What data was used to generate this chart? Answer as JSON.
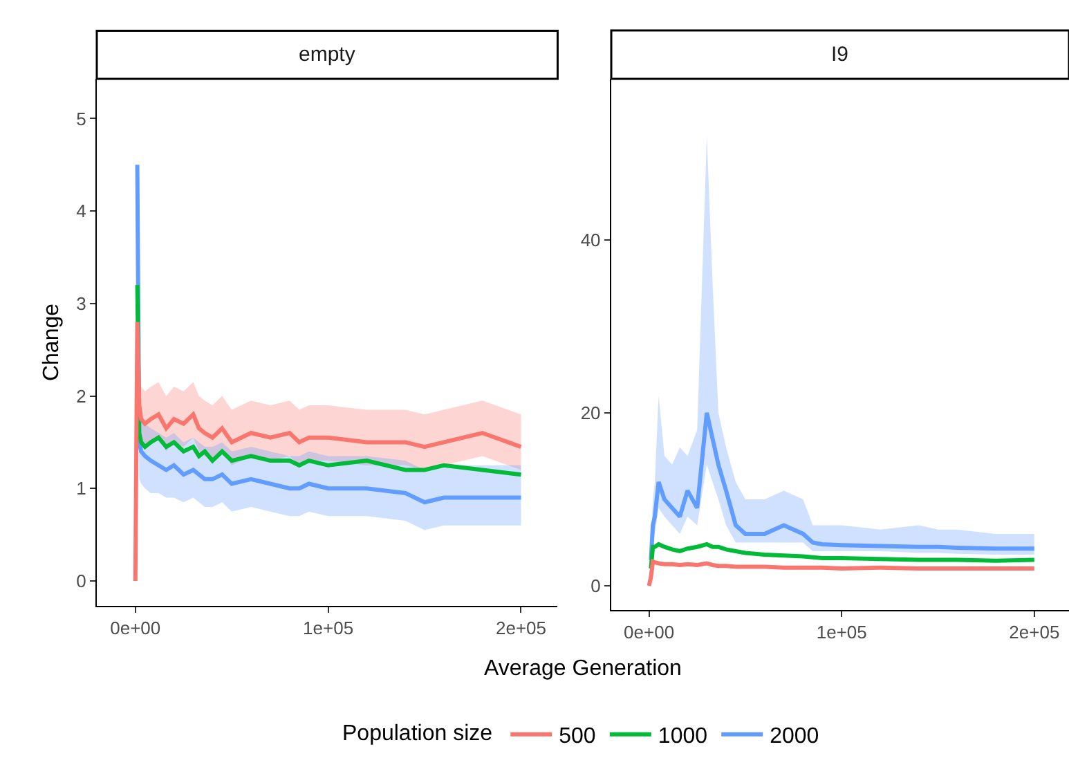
{
  "chart_data": [
    {
      "type": "line",
      "title": "empty",
      "xlabel": "Average Generation",
      "ylabel": "Change",
      "legend_title": "Population size",
      "legend": "bottom",
      "grid": false,
      "x": [
        0,
        1000,
        2000,
        3000,
        5000,
        8000,
        12000,
        16000,
        20000,
        25000,
        30000,
        33000,
        36000,
        40000,
        45000,
        50000,
        60000,
        70000,
        80000,
        85000,
        90000,
        100000,
        120000,
        140000,
        150000,
        160000,
        180000,
        200000
      ],
      "xlim": [
        -20000,
        219000
      ],
      "xticks": [
        {
          "value": 0,
          "label": "0e+00"
        },
        {
          "value": 100000,
          "label": "1e+05"
        },
        {
          "value": 200000,
          "label": "2e+05"
        }
      ],
      "ylim": [
        -0.27,
        5.43
      ],
      "yticks": [
        0,
        1,
        2,
        3,
        4,
        5
      ],
      "series": [
        {
          "name": "500",
          "color": "#f8766d",
          "values": [
            0,
            2.8,
            1.9,
            1.75,
            1.7,
            1.75,
            1.8,
            1.65,
            1.75,
            1.7,
            1.8,
            1.65,
            1.6,
            1.55,
            1.65,
            1.5,
            1.6,
            1.55,
            1.6,
            1.5,
            1.55,
            1.55,
            1.5,
            1.5,
            1.45,
            1.5,
            1.6,
            1.45
          ],
          "lower": [
            0,
            2.8,
            1.65,
            1.5,
            1.45,
            1.5,
            1.55,
            1.4,
            1.5,
            1.45,
            1.55,
            1.4,
            1.35,
            1.3,
            1.4,
            1.25,
            1.35,
            1.3,
            1.35,
            1.25,
            1.3,
            1.3,
            1.25,
            1.25,
            1.2,
            1.25,
            1.35,
            1.2
          ],
          "upper": [
            0,
            2.8,
            2.25,
            2.1,
            2.05,
            2.1,
            2.15,
            2.0,
            2.1,
            2.05,
            2.15,
            2.0,
            1.95,
            1.9,
            2.0,
            1.85,
            1.95,
            1.9,
            1.95,
            1.85,
            1.9,
            1.9,
            1.85,
            1.85,
            1.8,
            1.85,
            1.95,
            1.8
          ]
        },
        {
          "name": "1000",
          "color": "#00ba38",
          "values": [
            null,
            3.2,
            1.6,
            1.5,
            1.45,
            1.5,
            1.55,
            1.45,
            1.5,
            1.4,
            1.45,
            1.35,
            1.4,
            1.3,
            1.4,
            1.3,
            1.35,
            1.3,
            1.3,
            1.25,
            1.3,
            1.25,
            1.3,
            1.2,
            1.2,
            1.25,
            1.2,
            1.15
          ]
        },
        {
          "name": "2000",
          "color": "#619cff",
          "values": [
            null,
            4.5,
            1.5,
            1.4,
            1.35,
            1.3,
            1.25,
            1.2,
            1.25,
            1.15,
            1.2,
            1.15,
            1.1,
            1.1,
            1.15,
            1.05,
            1.1,
            1.05,
            1.0,
            1.0,
            1.05,
            1.0,
            1.0,
            0.95,
            0.85,
            0.9,
            0.9,
            0.9
          ],
          "lower": [
            0,
            4.5,
            1.1,
            1.05,
            1.0,
            0.95,
            0.95,
            0.9,
            0.9,
            0.85,
            0.9,
            0.85,
            0.8,
            0.8,
            0.85,
            0.75,
            0.8,
            0.75,
            0.7,
            0.7,
            0.75,
            0.7,
            0.7,
            0.65,
            0.55,
            0.6,
            0.6,
            0.6
          ],
          "upper": [
            0,
            4.5,
            1.9,
            1.75,
            1.7,
            1.65,
            1.6,
            1.55,
            1.6,
            1.5,
            1.55,
            1.5,
            1.45,
            1.45,
            1.5,
            1.4,
            1.45,
            1.4,
            1.35,
            1.35,
            1.4,
            1.35,
            1.35,
            1.3,
            1.2,
            1.25,
            1.25,
            1.25
          ]
        }
      ]
    },
    {
      "type": "line",
      "title": "I9",
      "legend": false,
      "grid": false,
      "x": [
        0,
        1000,
        2000,
        3000,
        5000,
        8000,
        12000,
        16000,
        20000,
        25000,
        30000,
        33000,
        36000,
        40000,
        45000,
        50000,
        60000,
        70000,
        80000,
        85000,
        90000,
        100000,
        120000,
        140000,
        150000,
        160000,
        180000,
        200000
      ],
      "xlim": [
        -19600,
        218000
      ],
      "xticks": [
        {
          "value": 0,
          "label": "0e+00"
        },
        {
          "value": 100000,
          "label": "1e+05"
        },
        {
          "value": 200000,
          "label": "2e+05"
        }
      ],
      "ylim": [
        -2.8,
        58.6
      ],
      "yticks": [
        0,
        20,
        40
      ],
      "series": [
        {
          "name": "500",
          "color": "#f8766d",
          "values": [
            0,
            1,
            2.8,
            2.7,
            2.6,
            2.5,
            2.5,
            2.4,
            2.5,
            2.4,
            2.6,
            2.4,
            2.3,
            2.3,
            2.2,
            2.2,
            2.2,
            2.1,
            2.1,
            2.1,
            2.1,
            2.0,
            2.1,
            2.0,
            2.0,
            2.0,
            2.0,
            2.0
          ]
        },
        {
          "name": "1000",
          "color": "#00ba38",
          "values": [
            null,
            2,
            4.5,
            4.5,
            4.8,
            4.5,
            4.2,
            4.0,
            4.3,
            4.5,
            4.8,
            4.5,
            4.5,
            4.2,
            4.0,
            3.8,
            3.6,
            3.5,
            3.4,
            3.3,
            3.2,
            3.2,
            3.1,
            3.0,
            3.0,
            3.0,
            2.9,
            3.0
          ]
        },
        {
          "name": "2000",
          "color": "#619cff",
          "values": [
            null,
            3,
            7,
            8,
            12,
            10,
            9,
            8,
            11,
            9,
            20,
            17,
            14,
            11,
            7,
            6,
            6,
            7,
            6,
            5,
            4.8,
            4.7,
            4.6,
            4.5,
            4.5,
            4.4,
            4.3,
            4.3
          ],
          "lower": [
            0,
            2,
            5,
            6,
            9,
            8,
            7,
            6,
            8,
            7,
            14,
            12,
            10,
            7,
            5,
            5,
            5,
            5,
            5,
            4,
            4,
            4,
            4,
            3.8,
            3.8,
            3.7,
            3.6,
            3.6
          ],
          "upper": [
            0,
            5,
            10,
            12,
            22,
            15,
            14,
            16,
            15,
            18,
            52,
            35,
            20,
            16,
            12,
            10,
            10,
            11,
            10,
            7,
            7,
            7,
            6.5,
            7,
            6.5,
            6.5,
            6,
            6
          ]
        }
      ]
    }
  ]
}
